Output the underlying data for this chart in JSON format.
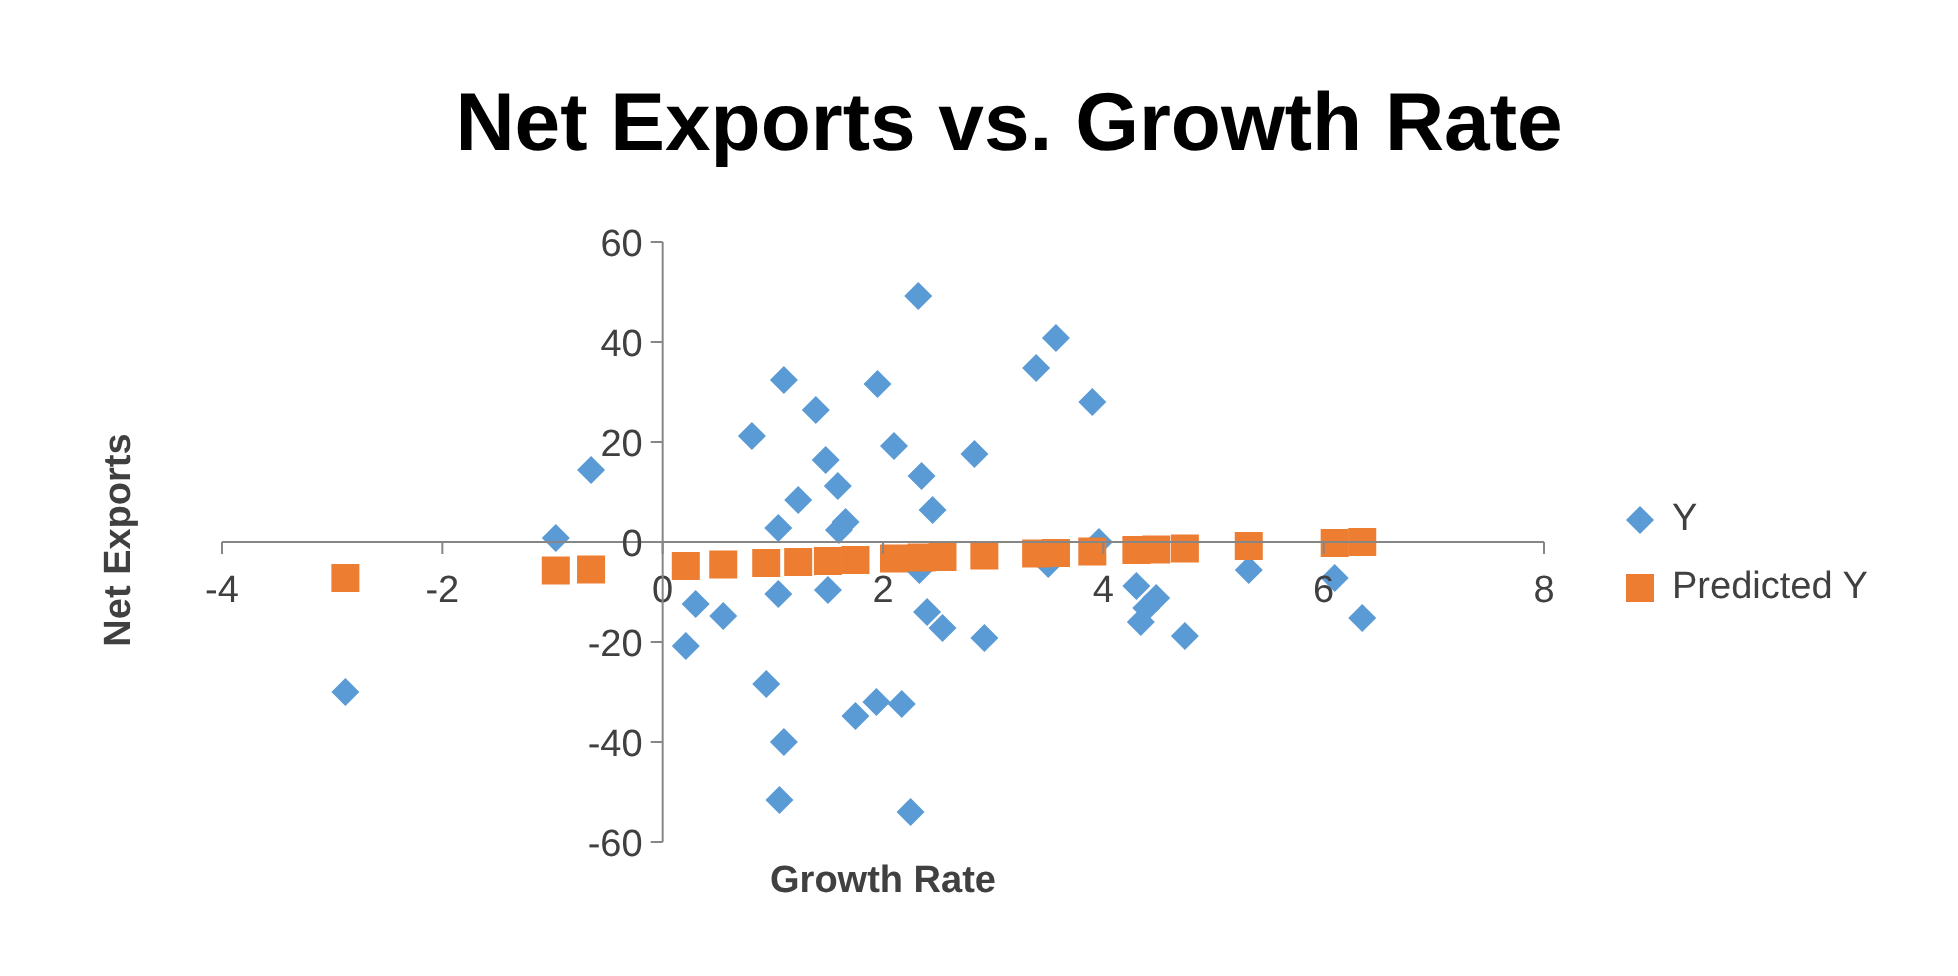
{
  "chart_data": {
    "type": "scatter",
    "title": "Net Exports vs. Growth Rate",
    "xlabel": "Growth Rate",
    "ylabel": "Net Exports",
    "xlim": [
      -4,
      8
    ],
    "xticks": [
      -4,
      -2,
      0,
      2,
      4,
      6,
      8
    ],
    "ylim": [
      -60,
      60
    ],
    "yticks": [
      -60,
      -40,
      -20,
      0,
      20,
      40,
      60
    ],
    "legend": "right",
    "x": [
      -2.88,
      -0.97,
      -0.65,
      0.3,
      0.21,
      0.55,
      0.81,
      0.94,
      1.05,
      1.1,
      1.05,
      1.1,
      1.06,
      1.23,
      1.39,
      1.48,
      1.5,
      1.59,
      1.66,
      1.6,
      1.75,
      1.94,
      1.95,
      2.1,
      2.17,
      2.25,
      2.32,
      2.35,
      2.45,
      2.33,
      2.4,
      2.54,
      2.83,
      2.92,
      3.39,
      3.57,
      3.5,
      3.9,
      3.96,
      4.3,
      4.39,
      4.48,
      4.34,
      4.74,
      5.32,
      6.1,
      6.35
    ],
    "series": [
      {
        "name": "Y",
        "color": "#5b9bd5",
        "marker": "diamond",
        "values": [
          -30,
          0.8,
          14.4,
          -12.4,
          -20.8,
          -14.8,
          21.2,
          -28.4,
          2.8,
          32.4,
          -10.4,
          -40,
          -51.6,
          8.4,
          26.4,
          16.4,
          -9.6,
          11.2,
          4,
          2.4,
          -34.8,
          -32,
          31.6,
          19.2,
          -32.4,
          -54,
          49.2,
          13.2,
          6.4,
          -5.6,
          -14,
          -17.2,
          17.6,
          -19.2,
          34.8,
          40.8,
          -4.4,
          28,
          0,
          -8.8,
          -13.2,
          -11.2,
          -16,
          -18.8,
          -5.6,
          -7.2,
          -15.2
        ]
      },
      {
        "name": "Predicted Y",
        "color": "#ed7d31",
        "marker": "square",
        "x": [
          -2.88,
          -0.97,
          -0.65,
          0.21,
          0.55,
          0.94,
          1.23,
          1.5,
          1.75,
          2.1,
          2.35,
          2.54,
          2.92,
          3.39,
          3.57,
          3.9,
          4.3,
          4.48,
          4.74,
          5.32,
          6.1,
          6.35
        ],
        "values": [
          -7.2,
          -5.7,
          -5.5,
          -4.8,
          -4.5,
          -4.2,
          -4.0,
          -3.8,
          -3.6,
          -3.3,
          -3.1,
          -3.0,
          -2.7,
          -2.3,
          -2.2,
          -1.9,
          -1.6,
          -1.5,
          -1.3,
          -0.8,
          -0.2,
          0.0
        ]
      }
    ]
  }
}
